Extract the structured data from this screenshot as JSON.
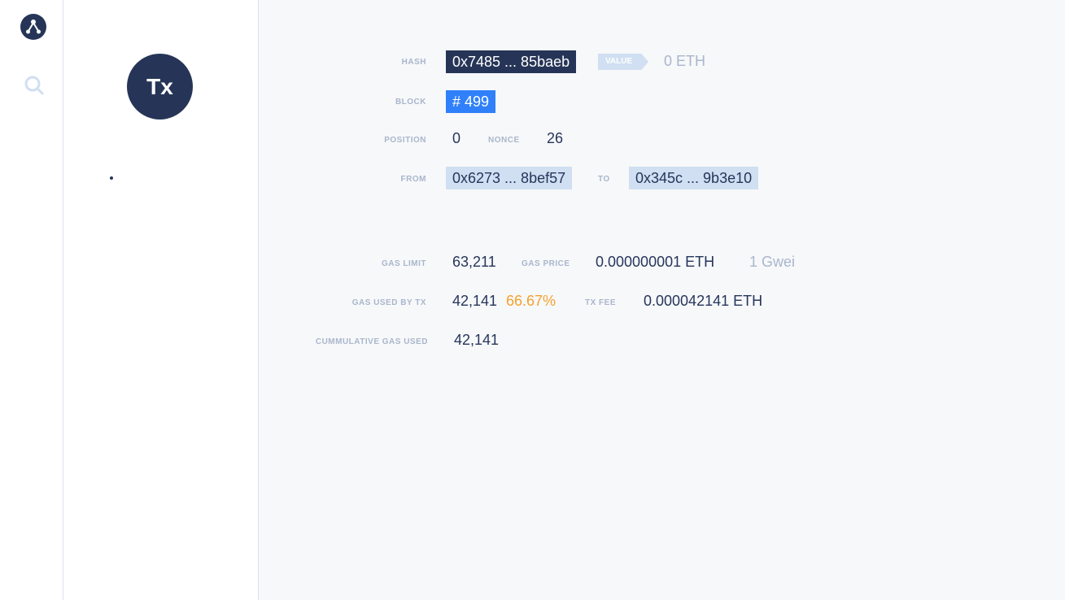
{
  "sidebar": {
    "avatar": "Tx"
  },
  "tx": {
    "hash_label": "HASH",
    "hash": "0x7485 ... 85baeb",
    "value_label": "VALUE",
    "value": "0 ETH",
    "block_label": "BLOCK",
    "block": "# 499",
    "position_label": "POSITION",
    "position": "0",
    "nonce_label": "NONCE",
    "nonce": "26",
    "from_label": "FROM",
    "from": "0x6273 ... 8bef57",
    "to_label": "TO",
    "to": "0x345c ... 9b3e10",
    "gas_limit_label": "GAS LIMIT",
    "gas_limit": "63,211",
    "gas_price_label": "GAS PRICE",
    "gas_price": "0.000000001 ETH",
    "gas_price_gwei": "1 Gwei",
    "gas_used_label": "GAS USED BY TX",
    "gas_used": "42,141",
    "gas_used_pct": "66.67%",
    "fee_label": "TX FEE",
    "fee": "0.000042141 ETH",
    "cumulative_label": "CUMMULATIVE GAS USED",
    "cumulative": "42,141"
  }
}
